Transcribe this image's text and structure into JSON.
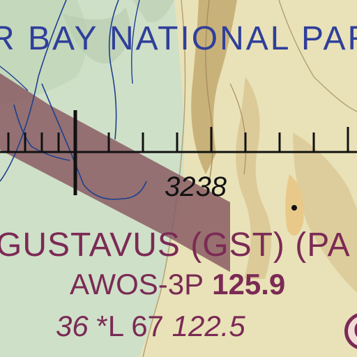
{
  "map": {
    "park_label": "R BAY NATIONAL PAR",
    "spot_elevation": "3238",
    "airport": {
      "name": "GUSTAVUS (GST)  (PA",
      "awos_type": "AWOS-3P",
      "awos_freq": "125.9",
      "field_elevation": "36",
      "lighting": "*L",
      "runway_length": "67",
      "ctaf_freq": "122.5",
      "ctaf_symbol": "C"
    },
    "colors": {
      "park_text": "#2f3f9a",
      "airport_text": "#7b2a55",
      "restricted_band": "#8a5c63",
      "river": "#1c3f8f",
      "low_terrain": "#cfe0c8",
      "mid_terrain": "#e9e2b8",
      "high_terrain": "#c9b27a"
    }
  }
}
